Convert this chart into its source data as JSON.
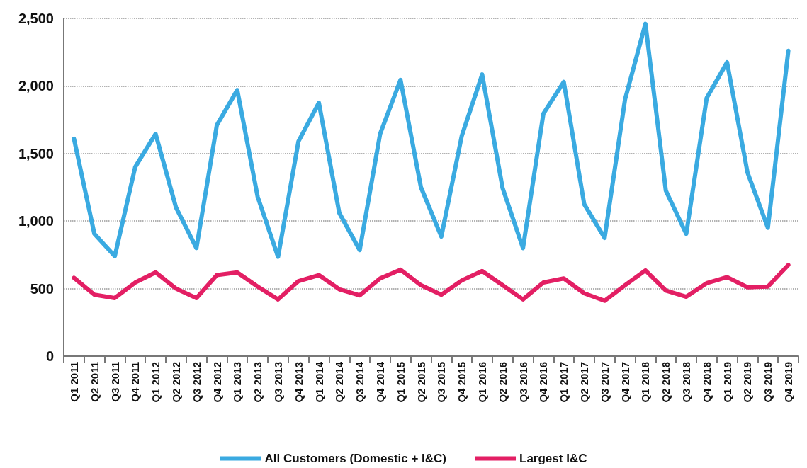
{
  "chart_data": {
    "type": "line",
    "categories": [
      "Q1 2011",
      "Q2 2011",
      "Q3 2011",
      "Q4 2011",
      "Q1 2012",
      "Q2 2012",
      "Q3 2012",
      "Q4 2012",
      "Q1 2013",
      "Q2 2013",
      "Q3 2013",
      "Q4 2013",
      "Q1 2014",
      "Q2 2014",
      "Q3 2014",
      "Q4 2014",
      "Q1 2015",
      "Q2 2015",
      "Q3 2015",
      "Q4 2015",
      "Q1 2016",
      "Q2 2016",
      "Q3 2016",
      "Q4 2016",
      "Q1 2017",
      "Q2 2017",
      "Q3 2017",
      "Q4 2017",
      "Q1 2018",
      "Q2 2018",
      "Q3 2018",
      "Q4 2018",
      "Q1 2019",
      "Q2 2019",
      "Q3 2019",
      "Q4 2019"
    ],
    "series": [
      {
        "name": "All Customers (Domestic + I&C)",
        "color": "#3aaae1",
        "values": [
          1610,
          905,
          740,
          1400,
          1645,
          1100,
          800,
          1710,
          1970,
          1180,
          735,
          1590,
          1875,
          1060,
          785,
          1645,
          2045,
          1250,
          885,
          1630,
          2085,
          1245,
          800,
          1795,
          2030,
          1125,
          875,
          1900,
          2460,
          1225,
          905,
          1910,
          2175,
          1360,
          950,
          2260
        ]
      },
      {
        "name": "Largest I&C",
        "color": "#e31f64",
        "values": [
          580,
          455,
          430,
          545,
          620,
          500,
          430,
          600,
          620,
          515,
          420,
          555,
          600,
          495,
          450,
          575,
          640,
          525,
          455,
          560,
          630,
          525,
          420,
          545,
          575,
          465,
          410,
          525,
          635,
          485,
          440,
          540,
          585,
          510,
          515,
          675
        ]
      }
    ],
    "ylim": [
      0,
      2500
    ],
    "yticks": [
      {
        "value": 0,
        "label": "0"
      },
      {
        "value": 500,
        "label": "500"
      },
      {
        "value": 1000,
        "label": "1,000"
      },
      {
        "value": 1500,
        "label": "1,500"
      },
      {
        "value": 2000,
        "label": "2,000"
      },
      {
        "value": 2500,
        "label": "2,500"
      }
    ],
    "grid": "y",
    "legend": "bottom",
    "marker": "none",
    "line_style": "solid"
  }
}
